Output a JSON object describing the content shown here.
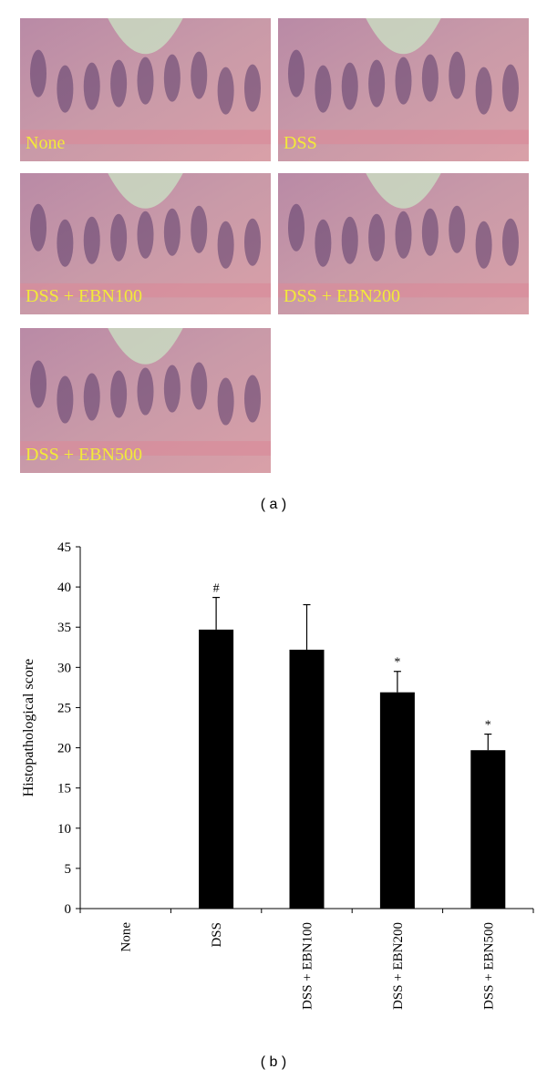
{
  "panel_a": {
    "images": [
      {
        "label": "None"
      },
      {
        "label": "DSS"
      },
      {
        "label": "DSS + EBN100"
      },
      {
        "label": "DSS + EBN200"
      },
      {
        "label": "DSS + EBN500"
      }
    ],
    "caption": "( a )"
  },
  "chart_data": {
    "type": "bar",
    "y_label": "Histopathological score",
    "categories": [
      "None",
      "DSS",
      "DSS + EBN100",
      "DSS + EBN200",
      "DSS + EBN500"
    ],
    "values": [
      0,
      34.7,
      32.2,
      26.9,
      19.7
    ],
    "errors": [
      null,
      4.0,
      5.6,
      2.6,
      2.0
    ],
    "annotations": [
      null,
      "#",
      null,
      "*",
      "*"
    ],
    "color": "#000000",
    "ylim": [
      0,
      45
    ],
    "yticks": [
      0,
      5,
      10,
      15,
      20,
      25,
      30,
      35,
      40,
      45
    ],
    "grid": false
  },
  "panel_b": {
    "caption": "( b )"
  }
}
